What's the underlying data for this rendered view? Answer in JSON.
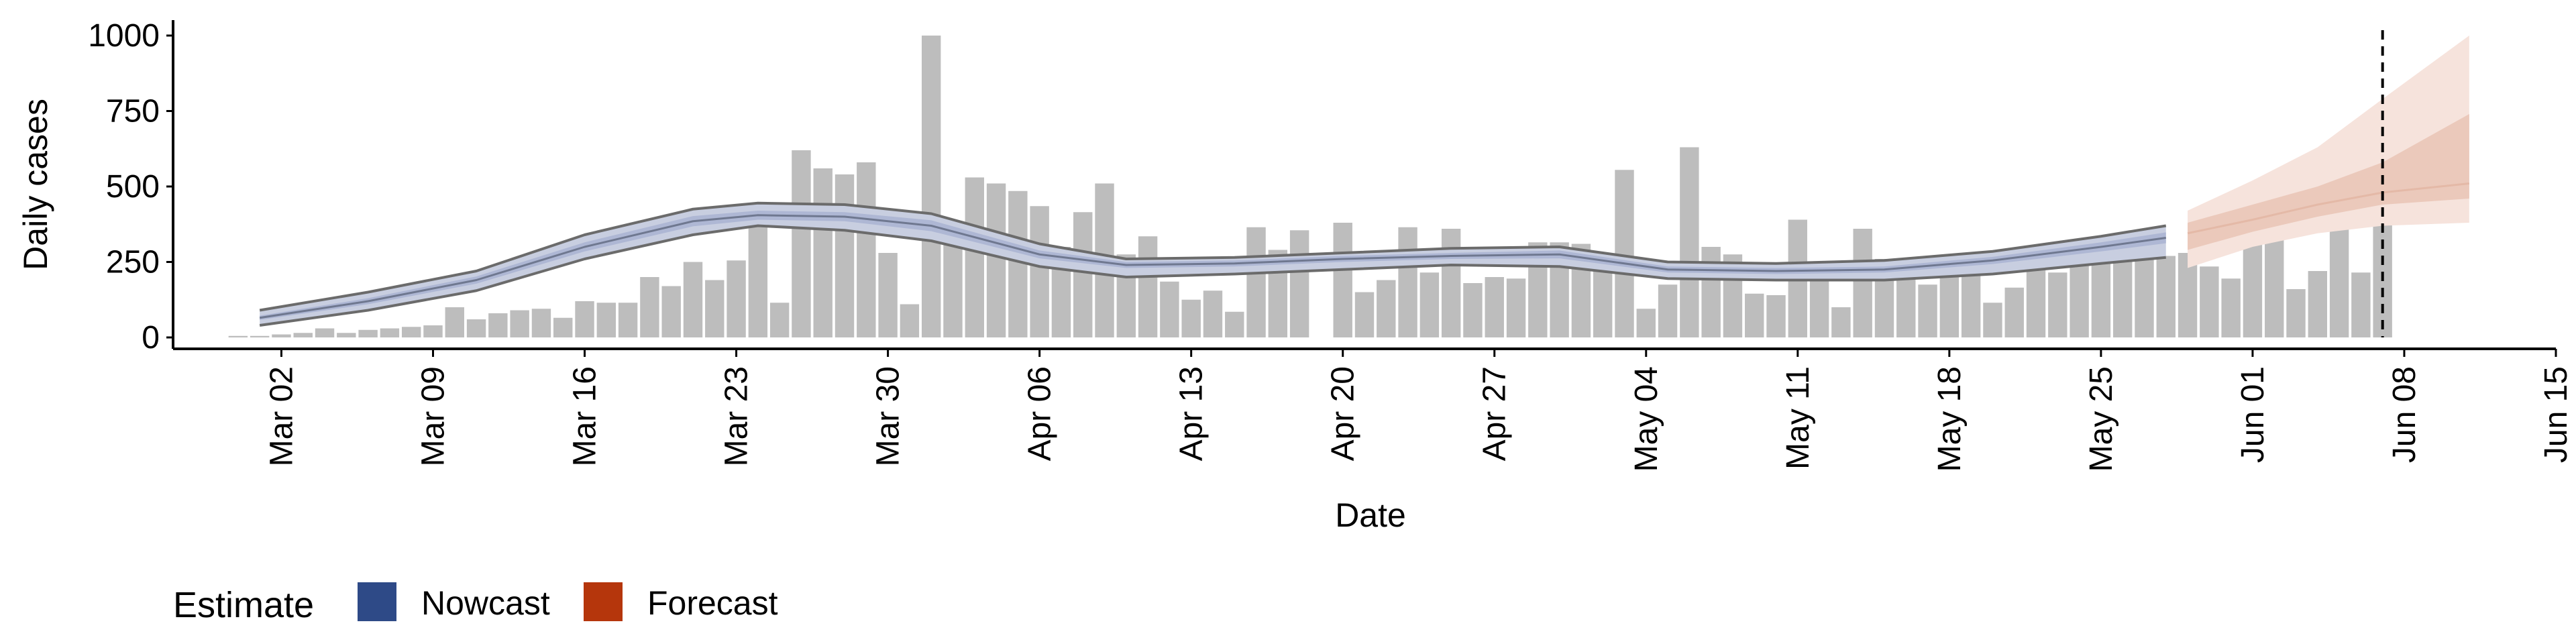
{
  "chart_data": {
    "type": "bar",
    "xlabel": "Date",
    "ylabel": "Daily cases",
    "ylim": [
      0,
      1000
    ],
    "yticks": [
      0,
      250,
      500,
      750,
      1000
    ],
    "x_start_date": "2020-02-29",
    "xlim": [
      "2020-02-26",
      "2020-06-15"
    ],
    "xtick_labels": [
      "Mar 02",
      "Mar 09",
      "Mar 16",
      "Mar 23",
      "Mar 30",
      "Apr 06",
      "Apr 13",
      "Apr 20",
      "Apr 27",
      "May 04",
      "May 11",
      "May 18",
      "May 25",
      "Jun 01",
      "Jun 08",
      "Jun 15"
    ],
    "xtick_dates": [
      "2020-03-02",
      "2020-03-09",
      "2020-03-16",
      "2020-03-23",
      "2020-03-30",
      "2020-04-06",
      "2020-04-13",
      "2020-04-20",
      "2020-04-27",
      "2020-05-04",
      "2020-05-11",
      "2020-05-18",
      "2020-05-25",
      "2020-06-01",
      "2020-06-08",
      "2020-06-15"
    ],
    "bars": [
      5,
      5,
      10,
      15,
      30,
      15,
      25,
      30,
      35,
      40,
      100,
      60,
      80,
      90,
      95,
      65,
      120,
      115,
      115,
      200,
      170,
      250,
      190,
      255,
      370,
      115,
      620,
      560,
      540,
      580,
      280,
      110,
      1000,
      380,
      530,
      510,
      485,
      435,
      300,
      415,
      510,
      275,
      335,
      185,
      125,
      155,
      85,
      365,
      290,
      355,
      0,
      380,
      150,
      190,
      365,
      215,
      360,
      180,
      200,
      195,
      315,
      315,
      310,
      240,
      555,
      95,
      175,
      630,
      300,
      275,
      145,
      140,
      390,
      215,
      100,
      360,
      260,
      200,
      175,
      245,
      230,
      115,
      165,
      240,
      215,
      245,
      265,
      290,
      280,
      270,
      280,
      235,
      195,
      455,
      330,
      160,
      220,
      545,
      215,
      580
    ],
    "nowcast": {
      "dates": [
        "2020-03-01",
        "2020-03-06",
        "2020-03-11",
        "2020-03-16",
        "2020-03-21",
        "2020-03-24",
        "2020-03-28",
        "2020-04-01",
        "2020-04-06",
        "2020-04-10",
        "2020-04-15",
        "2020-04-20",
        "2020-04-25",
        "2020-04-30",
        "2020-05-05",
        "2020-05-10",
        "2020-05-15",
        "2020-05-20",
        "2020-05-25",
        "2020-05-28"
      ],
      "median": [
        65,
        120,
        190,
        300,
        385,
        405,
        400,
        370,
        275,
        240,
        245,
        260,
        270,
        275,
        225,
        220,
        225,
        255,
        300,
        330
      ],
      "lower_50": [
        58,
        110,
        178,
        285,
        368,
        390,
        385,
        352,
        262,
        230,
        235,
        250,
        260,
        262,
        215,
        210,
        215,
        243,
        285,
        312
      ],
      "upper_50": [
        72,
        130,
        202,
        315,
        402,
        420,
        415,
        388,
        288,
        250,
        255,
        270,
        280,
        288,
        235,
        230,
        235,
        267,
        315,
        348
      ],
      "lower_90": [
        40,
        90,
        155,
        260,
        340,
        370,
        355,
        320,
        235,
        200,
        210,
        225,
        240,
        235,
        195,
        190,
        190,
        210,
        245,
        265
      ],
      "upper_90": [
        90,
        150,
        220,
        340,
        425,
        445,
        440,
        410,
        310,
        260,
        265,
        280,
        295,
        300,
        250,
        245,
        255,
        285,
        335,
        370
      ]
    },
    "forecast": {
      "dates": [
        "2020-05-29",
        "2020-06-01",
        "2020-06-04",
        "2020-06-07",
        "2020-06-11"
      ],
      "lower_90": [
        230,
        300,
        345,
        370,
        380
      ],
      "lower_50": [
        290,
        350,
        400,
        440,
        460
      ],
      "median": [
        345,
        390,
        440,
        480,
        510
      ],
      "upper_50": [
        380,
        440,
        500,
        580,
        740
      ],
      "upper_90": [
        420,
        520,
        630,
        790,
        1000
      ]
    },
    "vline_date": "2020-06-07",
    "legend": {
      "title": "Estimate",
      "position": "bottom",
      "items": [
        {
          "label": "Nowcast",
          "color": "#2e4a87"
        },
        {
          "label": "Forecast",
          "color": "#b5360c"
        }
      ]
    },
    "colors": {
      "bars": "#bdbdbd",
      "nowcast_band_90": "#c8cee0",
      "nowcast_band_50": "#aeb7d4",
      "nowcast_line": "#6f7890",
      "nowcast_outline": "#6b6b6b",
      "forecast_band_90": "#f6e3dc",
      "forecast_band_50": "#ebc9bb",
      "forecast_line": "#e4b9a7",
      "vline": "#000000",
      "axis": "#000000"
    }
  }
}
